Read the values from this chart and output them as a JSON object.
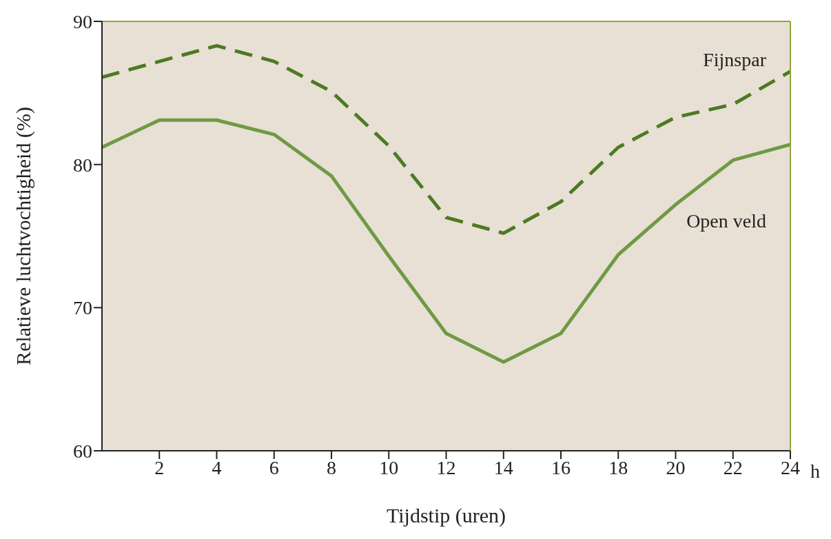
{
  "chart_data": {
    "type": "line",
    "xlabel": "Tijdstip (uren)",
    "ylabel": "Relatieve luchtvochtigheid (%)",
    "x": [
      0,
      2,
      4,
      6,
      8,
      10,
      12,
      14,
      16,
      18,
      20,
      22,
      24
    ],
    "series": [
      {
        "name": "Fijnspar",
        "color": "#4d7a23",
        "line_style": "dashed",
        "values": [
          86.1,
          87.2,
          88.3,
          87.2,
          85.1,
          81.3,
          76.3,
          75.2,
          77.4,
          81.2,
          83.3,
          84.2,
          86.5
        ]
      },
      {
        "name": "Open veld",
        "color": "#6f9a45",
        "line_style": "solid",
        "values": [
          81.2,
          83.1,
          83.1,
          82.1,
          79.2,
          73.6,
          68.2,
          66.2,
          68.2,
          73.7,
          77.2,
          80.3,
          81.4
        ]
      }
    ],
    "xlim": [
      0,
      24
    ],
    "xticks": [
      2,
      4,
      6,
      8,
      10,
      12,
      14,
      16,
      18,
      20,
      22,
      24
    ],
    "ylim": [
      60,
      90
    ],
    "yticks": [
      60,
      70,
      80,
      90
    ],
    "annotations": [
      "h"
    ],
    "grid": false,
    "marker": "none"
  }
}
